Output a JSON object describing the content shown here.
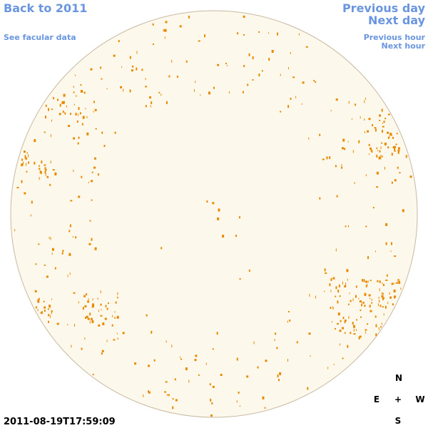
{
  "links": {
    "back": "Back to 2011",
    "facular": "See facular data",
    "previous_day": "Previous day",
    "next_day": "Next day",
    "previous_hour": "Previous hour",
    "next_hour": "Next hour"
  },
  "timestamp": "2011-08-19T17:59:09",
  "compass": {
    "north": "N",
    "east": "E",
    "center": "+",
    "west": "W",
    "south": "S"
  }
}
